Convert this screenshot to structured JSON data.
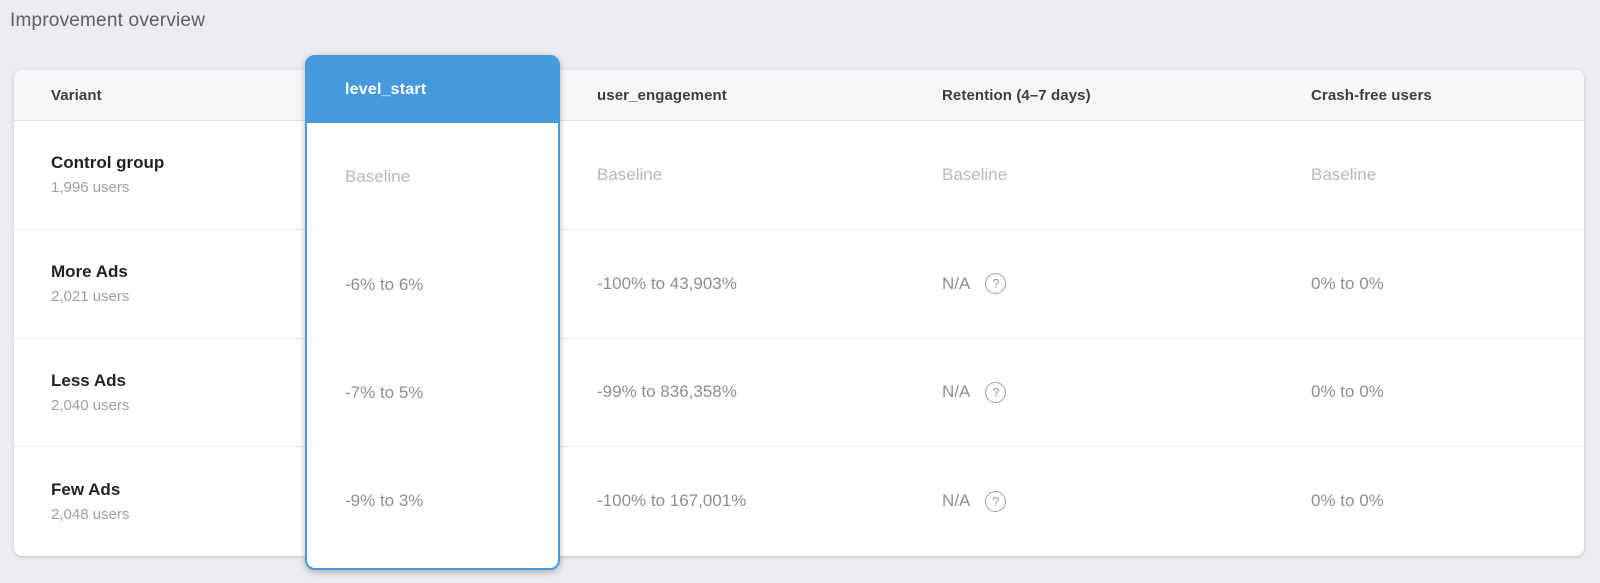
{
  "page": {
    "title": "Improvement overview"
  },
  "table": {
    "columns": [
      {
        "label": "Variant",
        "selected": false
      },
      {
        "label": "level_start",
        "selected": true
      },
      {
        "label": "user_engagement",
        "selected": false
      },
      {
        "label": "Retention (4–7 days)",
        "selected": false
      },
      {
        "label": "Crash-free users",
        "selected": false
      }
    ],
    "rows": [
      {
        "variant": "Control group",
        "users": "1,996 users",
        "level_start": "Baseline",
        "user_engagement": "Baseline",
        "retention": "Baseline",
        "crash_free": "Baseline"
      },
      {
        "variant": "More Ads",
        "users": "2,021 users",
        "level_start": "-6% to 6%",
        "user_engagement": "-100% to 43,903%",
        "retention": "N/A",
        "crash_free": "0% to 0%"
      },
      {
        "variant": "Less Ads",
        "users": "2,040 users",
        "level_start": "-7% to 5%",
        "user_engagement": "-99% to 836,358%",
        "retention": "N/A",
        "crash_free": "0% to 0%"
      },
      {
        "variant": "Few Ads",
        "users": "2,048 users",
        "level_start": "-9% to 3%",
        "user_engagement": "-100% to 167,001%",
        "retention": "N/A",
        "crash_free": "0% to 0%"
      }
    ],
    "help_glyph": "?",
    "colors": {
      "selected_blue": "#459ade",
      "baseline_text": "#b5b9bd",
      "value_text": "#8b8f93",
      "page_background": "#e9edf0"
    }
  }
}
